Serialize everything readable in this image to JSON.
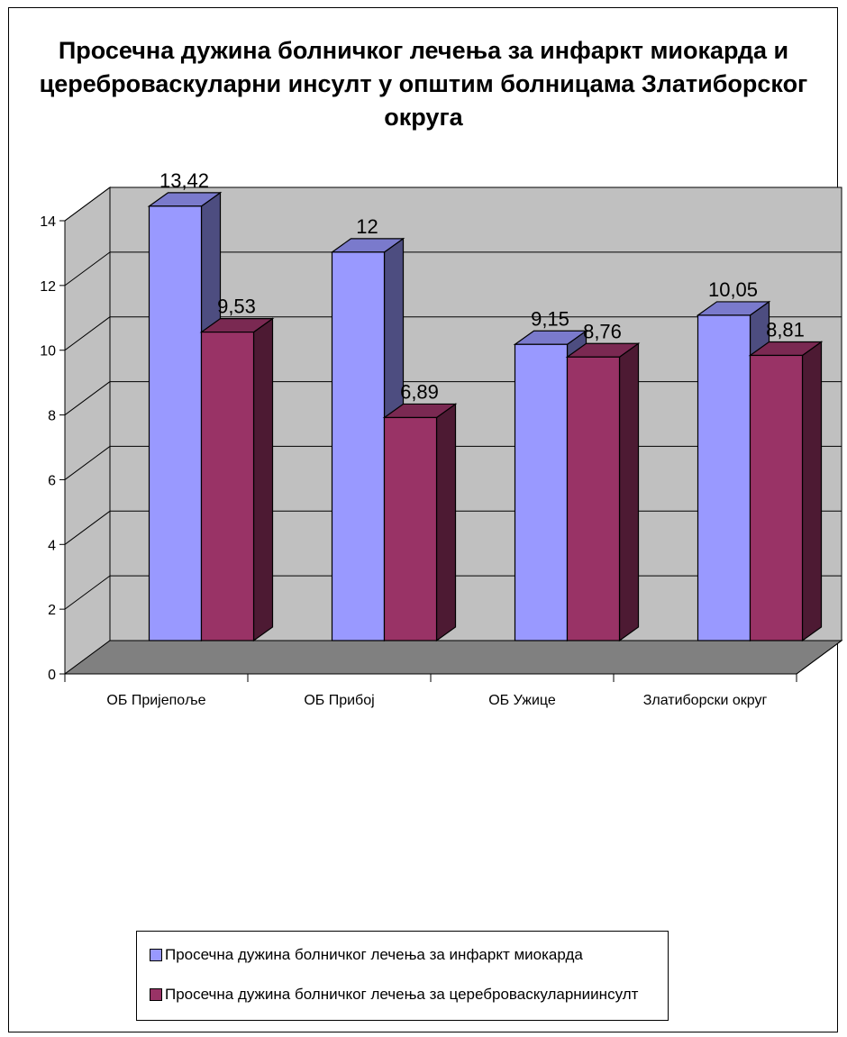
{
  "chart_data": {
    "type": "bar",
    "title": "Просечна дужина болничког лечења за инфаркт миокарда и цереброваскуларни инсулт у општим болницама Златиборског округа",
    "categories": [
      "ОБ Пријепоље",
      "ОБ Прибој",
      "ОБ Ужице",
      "Златиборски округ"
    ],
    "series": [
      {
        "name": "Просечна дужина болничког лечења за инфаркт миокарда",
        "values": [
          13.42,
          12,
          9.15,
          10.05
        ],
        "labels": [
          "13,42",
          "12",
          "9,15",
          "10,05"
        ],
        "color": "#9999ff"
      },
      {
        "name": "Просечна дужина болничког лечења за цереброваскуларниинсулт",
        "values": [
          9.53,
          6.89,
          8.76,
          8.81
        ],
        "labels": [
          "9,53",
          "6,89",
          "8,76",
          "8,81"
        ],
        "color": "#993366"
      }
    ],
    "y_ticks": [
      "0",
      "2",
      "4",
      "6",
      "8",
      "10",
      "12",
      "14"
    ],
    "ylim": [
      0,
      14
    ],
    "grid": true,
    "legend_position": "bottom",
    "style": "3d-clustered-column"
  },
  "colors": {
    "back_wall": "#c0c0c0",
    "floor": "#808080",
    "series1_side": "#4d4d80",
    "series1_top": "#7a7acc",
    "series2_side": "#4d1a33",
    "series2_top": "#7a2952"
  }
}
